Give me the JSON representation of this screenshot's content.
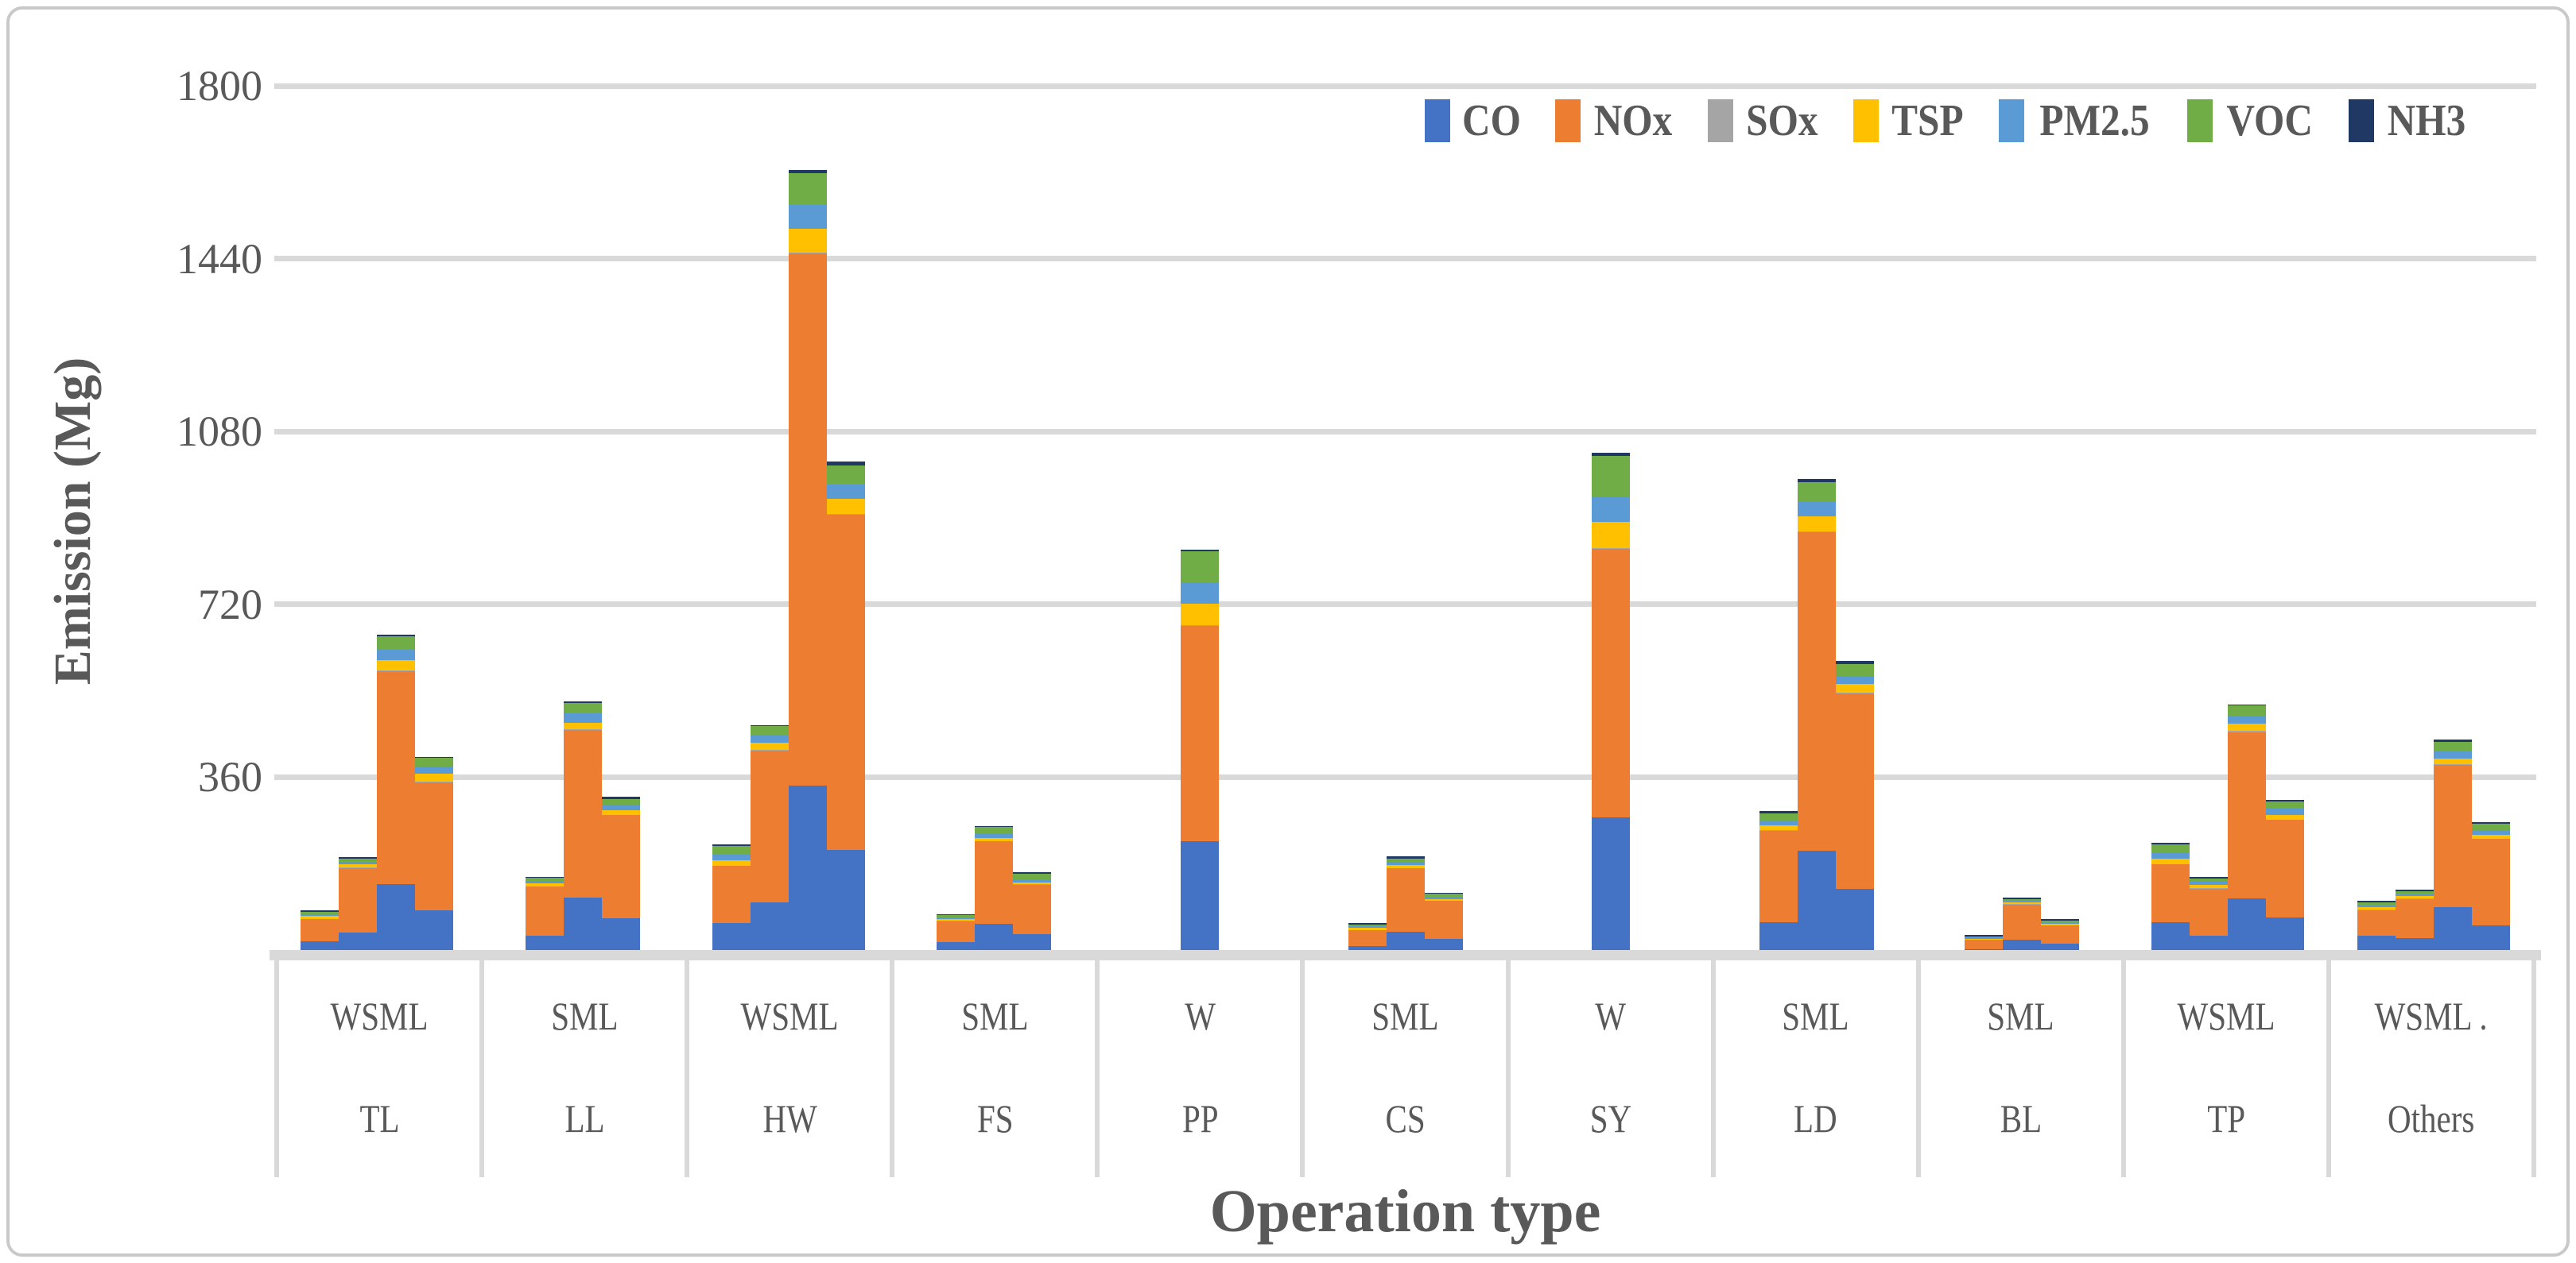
{
  "figure": {
    "background": "#FFFFFF",
    "frame_color": "#C9C9C9",
    "gridline_color": "#D9D9D9",
    "axis_text_color": "#595959"
  },
  "chart_data": {
    "type": "bar",
    "stacked": true,
    "title": "",
    "xlabel": "Operation type",
    "ylabel": "Emission (Mg)",
    "ylim": [
      0,
      1800
    ],
    "yticks": [
      360,
      720,
      1080,
      1440,
      1800
    ],
    "grid": "horizontal",
    "legend_position": "top-right",
    "series_value_order": [
      "CO",
      "NOx",
      "SOx",
      "TSP",
      "PM2.5",
      "VOC",
      "NH3"
    ],
    "series": [
      {
        "name": "CO",
        "color": "#4472C4"
      },
      {
        "name": "NOx",
        "color": "#ED7D31"
      },
      {
        "name": "SOx",
        "color": "#A5A5A5"
      },
      {
        "name": "TSP",
        "color": "#FFC000"
      },
      {
        "name": "PM2.5",
        "color": "#5B9BD5"
      },
      {
        "name": "VOC",
        "color": "#70AD47"
      },
      {
        "name": "NH3",
        "color": "#1F3864"
      }
    ],
    "groups": [
      {
        "operation": "TL",
        "size_row_label": "WSML",
        "bars": [
          {
            "size": "W",
            "values": [
              18,
              46,
              1,
              6,
              4,
              5,
              2
            ]
          },
          {
            "size": "S",
            "values": [
              36,
              135,
              1,
              7,
              5,
              6,
              3
            ]
          },
          {
            "size": "M",
            "values": [
              138,
              442,
              2,
              22,
              21,
              29,
              3
            ]
          },
          {
            "size": "L",
            "values": [
              82,
              267,
              2,
              17,
              15,
              17,
              2
            ]
          }
        ]
      },
      {
        "operation": "LL",
        "size_row_label": "SML",
        "bars": [
          {
            "size": "S",
            "values": [
              30,
              102,
              1,
              6,
              4,
              7,
              2
            ]
          },
          {
            "size": "M",
            "values": [
              109,
              349,
              2,
              14,
              19,
              21,
              4
            ]
          },
          {
            "size": "L",
            "values": [
              67,
              214,
              1,
              10,
              11,
              11,
              5
            ]
          }
        ]
      },
      {
        "operation": "HW",
        "size_row_label": "WSML",
        "bars": [
          {
            "size": "W",
            "values": [
              57,
              118,
              1,
              11,
              12,
              18,
              3
            ]
          },
          {
            "size": "S",
            "values": [
              99,
              316,
              2,
              15,
              15,
              19,
              3
            ]
          },
          {
            "size": "M",
            "values": [
              343,
              1108,
              2,
              49,
              50,
              66,
              7
            ]
          },
          {
            "size": "L",
            "values": [
              209,
              697,
              2,
              31,
              31,
              40,
              8
            ]
          }
        ]
      },
      {
        "operation": "FS",
        "size_row_label": "SML",
        "bars": [
          {
            "size": "S",
            "values": [
              17,
              43,
              1,
              3,
              4,
              5,
              2
            ]
          },
          {
            "size": "M",
            "values": [
              55,
              171,
              1,
              7,
              9,
              13,
              3
            ]
          },
          {
            "size": "L",
            "values": [
              33,
              103,
              1,
              4,
              6,
              12,
              4
            ]
          }
        ]
      },
      {
        "operation": "PP",
        "size_row_label": "W",
        "bars": [
          {
            "size": "W",
            "values": [
              227,
              448,
              1,
              45,
              43,
              66,
              4
            ]
          }
        ]
      },
      {
        "operation": "CS",
        "size_row_label": "SML",
        "bars": [
          {
            "size": "S",
            "values": [
              8,
              33,
              1,
              4,
              3,
              4,
              3
            ]
          },
          {
            "size": "M",
            "values": [
              38,
              132,
              1,
              6,
              5,
              8,
              5
            ]
          },
          {
            "size": "L",
            "values": [
              24,
              78,
              1,
              3,
              5,
              6,
              3
            ]
          }
        ]
      },
      {
        "operation": "SY",
        "size_row_label": "W",
        "bars": [
          {
            "size": "W",
            "values": [
              276,
              560,
              1,
              55,
              53,
              84,
              6
            ]
          }
        ]
      },
      {
        "operation": "LD",
        "size_row_label": "SML",
        "bars": [
          {
            "size": "S",
            "values": [
              58,
              191,
              1,
              9,
              10,
              16,
              5
            ]
          },
          {
            "size": "M",
            "values": [
              207,
              663,
              2,
              32,
              31,
              40,
              6
            ]
          },
          {
            "size": "L",
            "values": [
              127,
              408,
              1,
              19,
              16,
              24,
              7
            ]
          }
        ]
      },
      {
        "operation": "BL",
        "size_row_label": "SML",
        "bars": [
          {
            "size": "S",
            "values": [
              2,
              19,
              1,
              2,
              2,
              3,
              2
            ]
          },
          {
            "size": "M",
            "values": [
              21,
              74,
              1,
              3,
              4,
              3,
              3
            ]
          },
          {
            "size": "L",
            "values": [
              13,
              38,
              1,
              2,
              3,
              4,
              3
            ]
          }
        ]
      },
      {
        "operation": "TP",
        "size_row_label": "WSML",
        "bars": [
          {
            "size": "W",
            "values": [
              58,
              120,
              1,
              12,
              13,
              16,
              3
            ]
          },
          {
            "size": "S",
            "values": [
              30,
              98,
              1,
              7,
              7,
              6,
              4
            ]
          },
          {
            "size": "M",
            "values": [
              108,
              346,
              2,
              15,
              16,
              22,
              3
            ]
          },
          {
            "size": "L",
            "values": [
              68,
              203,
              1,
              9,
              13,
              16,
              3
            ]
          }
        ]
      },
      {
        "operation": "Others",
        "size_row_label": "WSML .",
        "bars": [
          {
            "size": "W",
            "values": [
              29,
              54,
              1,
              6,
              4,
              6,
              3
            ]
          },
          {
            "size": "S",
            "values": [
              25,
              81,
              1,
              6,
              5,
              4,
              4
            ]
          },
          {
            "size": "M",
            "values": [
              89,
              296,
              2,
              12,
              14,
              21,
              4
            ]
          },
          {
            "size": "L",
            "values": [
              51,
              180,
              1,
              8,
              8,
              15,
              4
            ]
          }
        ]
      }
    ]
  }
}
